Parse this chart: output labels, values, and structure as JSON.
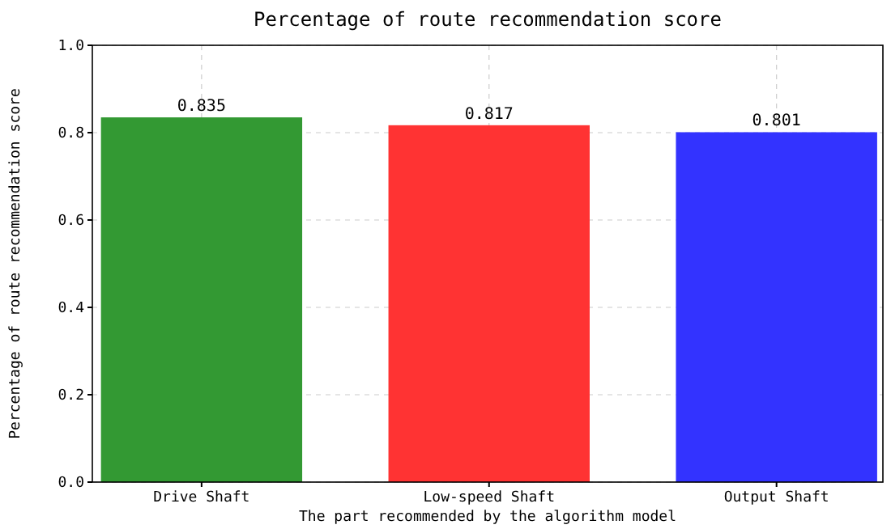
{
  "chart_data": {
    "type": "bar",
    "title": "Percentage of route recommendation score",
    "xlabel": "The part recommended by the algorithm model",
    "ylabel": "Percentage of route recommendation score",
    "categories": [
      "Drive Shaft",
      "Low-speed Shaft",
      "Output Shaft"
    ],
    "values": [
      0.835,
      0.817,
      0.801
    ],
    "colors": [
      "#339933",
      "#ff3333",
      "#3333ff"
    ],
    "ylim": [
      0,
      1
    ],
    "yticks": [
      {
        "value": 0,
        "label": "0.0"
      },
      {
        "value": 0.2,
        "label": "0.2"
      },
      {
        "value": 0.4,
        "label": "0.4"
      },
      {
        "value": 0.6,
        "label": "0.6"
      },
      {
        "value": 0.8,
        "label": "0.8"
      },
      {
        "value": 1,
        "label": "1.0"
      }
    ],
    "grid": true,
    "data_labels": true
  }
}
